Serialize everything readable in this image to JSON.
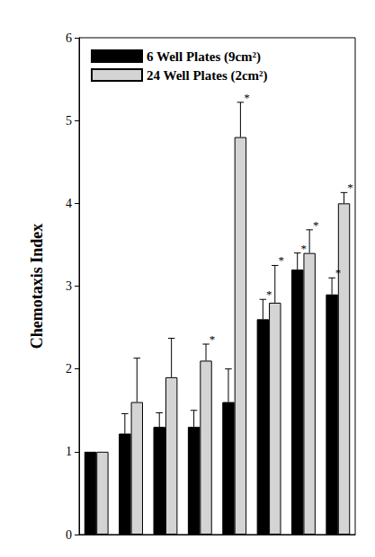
{
  "chart_data": {
    "type": "bar",
    "y_label": "Chemotaxis Index",
    "categories": [
      null,
      null,
      null,
      null,
      null,
      null,
      null,
      null
    ],
    "series": [
      {
        "name": "6 Well Plates (9cm²)",
        "color": "#000000",
        "values": [
          1.0,
          1.22,
          1.3,
          1.3,
          1.6,
          2.6,
          3.2,
          2.9
        ],
        "errors": [
          0,
          0.24,
          0.17,
          0.2,
          0.4,
          0.24,
          0.2,
          0.2
        ],
        "annotations": [
          null,
          null,
          null,
          null,
          null,
          "*",
          "*",
          "*"
        ]
      },
      {
        "name": "24 Well Plates (2cm²)",
        "color": "#d4d4d4",
        "values": [
          1.0,
          1.6,
          1.9,
          2.1,
          4.8,
          2.8,
          3.4,
          4.0
        ],
        "errors": [
          0,
          0.53,
          0.47,
          0.2,
          0.42,
          0.45,
          0.28,
          0.13
        ],
        "annotations": [
          null,
          null,
          null,
          "*",
          "*",
          "*",
          "*",
          "*"
        ]
      }
    ],
    "ylim": [
      0,
      6
    ],
    "yticks": [
      0,
      1,
      2,
      3,
      4,
      5,
      6
    ],
    "legend": "upper left",
    "tick_labels": "y",
    "grid": false
  }
}
